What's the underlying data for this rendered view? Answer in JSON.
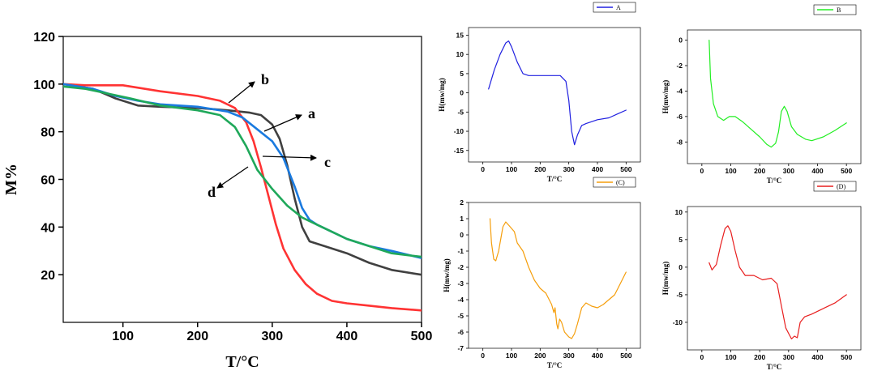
{
  "chart_data": [
    {
      "id": "main",
      "type": "line",
      "xlabel": "T/°C",
      "ylabel": "M%",
      "xlim": [
        20,
        500
      ],
      "ylim": [
        0,
        120
      ],
      "xticks": [
        100,
        200,
        300,
        400,
        500
      ],
      "yticks": [
        20,
        40,
        60,
        80,
        100,
        120
      ],
      "series": [
        {
          "name": "a",
          "color": "#404040",
          "points": [
            [
              20,
              100
            ],
            [
              60,
              98
            ],
            [
              90,
              94
            ],
            [
              120,
              91
            ],
            [
              150,
              90.5
            ],
            [
              200,
              90
            ],
            [
              240,
              89
            ],
            [
              270,
              88
            ],
            [
              285,
              87
            ],
            [
              300,
              83
            ],
            [
              310,
              77
            ],
            [
              320,
              66
            ],
            [
              330,
              52
            ],
            [
              340,
              40
            ],
            [
              350,
              34
            ],
            [
              370,
              32
            ],
            [
              400,
              29
            ],
            [
              430,
              25
            ],
            [
              460,
              22
            ],
            [
              500,
              20
            ]
          ]
        },
        {
          "name": "b",
          "color": "#ff3333",
          "points": [
            [
              20,
              100
            ],
            [
              50,
              99.5
            ],
            [
              100,
              99.5
            ],
            [
              150,
              97
            ],
            [
              200,
              95
            ],
            [
              230,
              93
            ],
            [
              250,
              90
            ],
            [
              265,
              84
            ],
            [
              275,
              76
            ],
            [
              285,
              65
            ],
            [
              295,
              53
            ],
            [
              305,
              41
            ],
            [
              315,
              31
            ],
            [
              330,
              22
            ],
            [
              345,
              16
            ],
            [
              360,
              12
            ],
            [
              380,
              9
            ],
            [
              400,
              8
            ],
            [
              430,
              7
            ],
            [
              460,
              6
            ],
            [
              500,
              5
            ]
          ]
        },
        {
          "name": "c",
          "color": "#1a7adf",
          "points": [
            [
              20,
              100
            ],
            [
              60,
              98
            ],
            [
              90,
              95
            ],
            [
              120,
              93
            ],
            [
              150,
              91.5
            ],
            [
              200,
              90.5
            ],
            [
              240,
              88.5
            ],
            [
              260,
              86
            ],
            [
              280,
              81
            ],
            [
              300,
              76
            ],
            [
              315,
              69
            ],
            [
              330,
              57
            ],
            [
              340,
              48
            ],
            [
              350,
              43
            ],
            [
              360,
              41
            ],
            [
              380,
              38
            ],
            [
              400,
              35
            ],
            [
              430,
              32
            ],
            [
              460,
              30
            ],
            [
              500,
              27
            ]
          ]
        },
        {
          "name": "d",
          "color": "#1fa85a",
          "points": [
            [
              20,
              99
            ],
            [
              50,
              98
            ],
            [
              80,
              96
            ],
            [
              110,
              94
            ],
            [
              150,
              91
            ],
            [
              200,
              89
            ],
            [
              230,
              87
            ],
            [
              250,
              82
            ],
            [
              265,
              74
            ],
            [
              280,
              64
            ],
            [
              300,
              56
            ],
            [
              320,
              49
            ],
            [
              340,
              44
            ],
            [
              360,
              41
            ],
            [
              380,
              38
            ],
            [
              400,
              35
            ],
            [
              430,
              32
            ],
            [
              460,
              29
            ],
            [
              500,
              27.5
            ]
          ]
        }
      ],
      "annotations": [
        "a",
        "b",
        "c",
        "d"
      ]
    },
    {
      "id": "A",
      "type": "line",
      "legend": "A",
      "color": "#2020e0",
      "xlabel": "T/°C",
      "ylabel": "H(mw/mg)",
      "xlim": [
        -50,
        550
      ],
      "ylim": [
        -18,
        17
      ],
      "xticks": [
        0,
        100,
        200,
        300,
        400,
        500
      ],
      "yticks": [
        -15,
        -10,
        -5,
        0,
        5,
        10,
        15
      ],
      "points": [
        [
          20,
          1
        ],
        [
          40,
          6
        ],
        [
          60,
          10
        ],
        [
          80,
          13
        ],
        [
          90,
          13.5
        ],
        [
          100,
          12
        ],
        [
          120,
          8
        ],
        [
          140,
          5
        ],
        [
          160,
          4.5
        ],
        [
          200,
          4.5
        ],
        [
          240,
          4.5
        ],
        [
          270,
          4.5
        ],
        [
          290,
          3
        ],
        [
          300,
          -2
        ],
        [
          310,
          -10
        ],
        [
          320,
          -13.5
        ],
        [
          330,
          -11
        ],
        [
          345,
          -8.5
        ],
        [
          360,
          -8
        ],
        [
          400,
          -7
        ],
        [
          440,
          -6.5
        ],
        [
          470,
          -5.5
        ],
        [
          500,
          -4.5
        ]
      ]
    },
    {
      "id": "B",
      "type": "line",
      "legend": "B",
      "color": "#22ee22",
      "xlabel": "T/°C",
      "ylabel": "H(mw/mg)",
      "xlim": [
        -50,
        550
      ],
      "ylim": [
        -9.7,
        0.8
      ],
      "xticks": [
        0,
        100,
        200,
        300,
        400,
        500
      ],
      "yticks": [
        0,
        -2,
        -4,
        -6,
        -8
      ],
      "points": [
        [
          25,
          0
        ],
        [
          30,
          -3
        ],
        [
          40,
          -5
        ],
        [
          55,
          -6
        ],
        [
          75,
          -6.3
        ],
        [
          95,
          -6
        ],
        [
          115,
          -6
        ],
        [
          140,
          -6.4
        ],
        [
          170,
          -7
        ],
        [
          200,
          -7.6
        ],
        [
          225,
          -8.2
        ],
        [
          240,
          -8.4
        ],
        [
          255,
          -8.1
        ],
        [
          265,
          -7.2
        ],
        [
          275,
          -5.6
        ],
        [
          285,
          -5.2
        ],
        [
          295,
          -5.6
        ],
        [
          310,
          -6.8
        ],
        [
          330,
          -7.4
        ],
        [
          360,
          -7.8
        ],
        [
          380,
          -7.9
        ],
        [
          420,
          -7.6
        ],
        [
          460,
          -7.1
        ],
        [
          500,
          -6.5
        ]
      ]
    },
    {
      "id": "C",
      "type": "line",
      "legend": "(C)",
      "color": "#f59e0b",
      "xlabel": "T/°C",
      "ylabel": "H(mw/mg)",
      "xlim": [
        -50,
        550
      ],
      "ylim": [
        -7,
        2
      ],
      "xticks": [
        0,
        100,
        200,
        300,
        400,
        500
      ],
      "yticks": [
        2,
        1,
        0,
        -1,
        -2,
        -3,
        -4,
        -5,
        -6,
        -7
      ],
      "points": [
        [
          25,
          1
        ],
        [
          30,
          -0.5
        ],
        [
          38,
          -1.5
        ],
        [
          45,
          -1.6
        ],
        [
          55,
          -1
        ],
        [
          70,
          0.5
        ],
        [
          80,
          0.8
        ],
        [
          90,
          0.6
        ],
        [
          100,
          0.4
        ],
        [
          110,
          0.2
        ],
        [
          120,
          -0.5
        ],
        [
          140,
          -1
        ],
        [
          160,
          -2
        ],
        [
          180,
          -2.8
        ],
        [
          200,
          -3.3
        ],
        [
          220,
          -3.6
        ],
        [
          240,
          -4.3
        ],
        [
          248,
          -4.8
        ],
        [
          252,
          -4.5
        ],
        [
          258,
          -5.5
        ],
        [
          262,
          -5.8
        ],
        [
          268,
          -5.2
        ],
        [
          275,
          -5.4
        ],
        [
          285,
          -6
        ],
        [
          300,
          -6.3
        ],
        [
          310,
          -6.4
        ],
        [
          320,
          -6.1
        ],
        [
          330,
          -5.5
        ],
        [
          345,
          -4.5
        ],
        [
          360,
          -4.2
        ],
        [
          380,
          -4.4
        ],
        [
          400,
          -4.5
        ],
        [
          420,
          -4.3
        ],
        [
          440,
          -4
        ],
        [
          460,
          -3.7
        ],
        [
          480,
          -3
        ],
        [
          500,
          -2.3
        ]
      ]
    },
    {
      "id": "D",
      "type": "line",
      "legend": "(D)",
      "color": "#e81e1e",
      "xlabel": "T/°C",
      "ylabel": "H(mw/mg)",
      "xlim": [
        -50,
        550
      ],
      "ylim": [
        -15,
        11
      ],
      "xticks": [
        0,
        100,
        200,
        300,
        400,
        500
      ],
      "yticks": [
        10,
        5,
        0,
        -5,
        -10
      ],
      "points": [
        [
          25,
          0.8
        ],
        [
          35,
          -0.5
        ],
        [
          50,
          0.5
        ],
        [
          65,
          4
        ],
        [
          80,
          7
        ],
        [
          90,
          7.5
        ],
        [
          100,
          6.5
        ],
        [
          115,
          3
        ],
        [
          130,
          0
        ],
        [
          150,
          -1.5
        ],
        [
          180,
          -1.5
        ],
        [
          210,
          -2.3
        ],
        [
          240,
          -2
        ],
        [
          260,
          -3
        ],
        [
          275,
          -7
        ],
        [
          290,
          -11
        ],
        [
          300,
          -12
        ],
        [
          310,
          -13
        ],
        [
          320,
          -12.5
        ],
        [
          330,
          -12.8
        ],
        [
          340,
          -10
        ],
        [
          355,
          -9
        ],
        [
          380,
          -8.5
        ],
        [
          420,
          -7.5
        ],
        [
          460,
          -6.5
        ],
        [
          500,
          -5
        ]
      ]
    }
  ]
}
